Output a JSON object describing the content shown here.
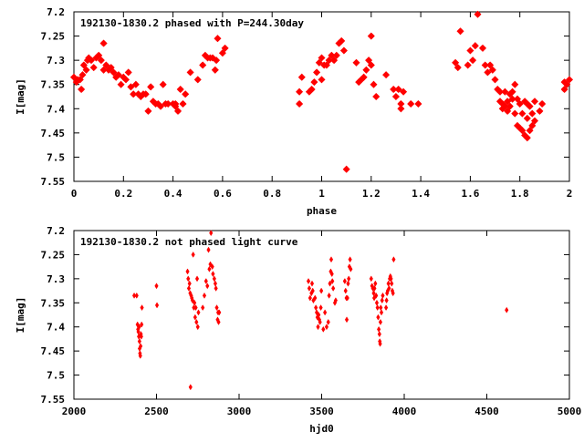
{
  "chart_data": [
    {
      "type": "scatter",
      "title": "192130-1830.2 phased with P=244.30day",
      "xlabel": "phase",
      "ylabel": "I[mag]",
      "xlim": [
        0,
        2
      ],
      "ylim": [
        7.2,
        7.55
      ],
      "y_inverted": true,
      "xticks": [
        0,
        0.2,
        0.4,
        0.6,
        0.8,
        1,
        1.2,
        1.4,
        1.6,
        1.8,
        2
      ],
      "xtick_labels": [
        "0",
        "0.2",
        "0.4",
        "0.6",
        "0.8",
        "1",
        "1.2",
        "1.4",
        "1.6",
        "1.8",
        "2"
      ],
      "yticks": [
        7.2,
        7.25,
        7.3,
        7.35,
        7.4,
        7.45,
        7.5,
        7.55
      ],
      "ytick_labels": [
        "7.2",
        "7.25",
        "7.3",
        "7.35",
        "7.4",
        "7.45",
        "7.5",
        "7.55"
      ],
      "marker": "star",
      "color": "#ff0000",
      "points": [
        [
          0.0,
          7.335
        ],
        [
          0.01,
          7.345
        ],
        [
          0.015,
          7.34
        ],
        [
          0.025,
          7.34
        ],
        [
          0.03,
          7.36
        ],
        [
          0.035,
          7.33
        ],
        [
          0.04,
          7.31
        ],
        [
          0.05,
          7.32
        ],
        [
          0.055,
          7.3
        ],
        [
          0.06,
          7.295
        ],
        [
          0.07,
          7.3
        ],
        [
          0.08,
          7.315
        ],
        [
          0.09,
          7.295
        ],
        [
          0.1,
          7.29
        ],
        [
          0.11,
          7.3
        ],
        [
          0.12,
          7.32
        ],
        [
          0.12,
          7.265
        ],
        [
          0.13,
          7.31
        ],
        [
          0.14,
          7.32
        ],
        [
          0.15,
          7.315
        ],
        [
          0.16,
          7.325
        ],
        [
          0.17,
          7.335
        ],
        [
          0.18,
          7.33
        ],
        [
          0.19,
          7.35
        ],
        [
          0.2,
          7.335
        ],
        [
          0.21,
          7.34
        ],
        [
          0.22,
          7.325
        ],
        [
          0.23,
          7.355
        ],
        [
          0.24,
          7.37
        ],
        [
          0.25,
          7.35
        ],
        [
          0.26,
          7.37
        ],
        [
          0.27,
          7.375
        ],
        [
          0.28,
          7.37
        ],
        [
          0.29,
          7.37
        ],
        [
          0.3,
          7.405
        ],
        [
          0.31,
          7.355
        ],
        [
          0.32,
          7.385
        ],
        [
          0.33,
          7.39
        ],
        [
          0.34,
          7.39
        ],
        [
          0.35,
          7.395
        ],
        [
          0.36,
          7.35
        ],
        [
          0.37,
          7.39
        ],
        [
          0.38,
          7.39
        ],
        [
          0.4,
          7.39
        ],
        [
          0.41,
          7.395
        ],
        [
          0.41,
          7.39
        ],
        [
          0.42,
          7.405
        ],
        [
          0.43,
          7.36
        ],
        [
          0.44,
          7.39
        ],
        [
          0.45,
          7.37
        ],
        [
          0.47,
          7.325
        ],
        [
          0.5,
          7.34
        ],
        [
          0.52,
          7.31
        ],
        [
          0.53,
          7.29
        ],
        [
          0.54,
          7.295
        ],
        [
          0.55,
          7.295
        ],
        [
          0.56,
          7.295
        ],
        [
          0.57,
          7.32
        ],
        [
          0.575,
          7.3
        ],
        [
          0.58,
          7.255
        ],
        [
          0.6,
          7.285
        ],
        [
          0.61,
          7.275
        ],
        [
          0.91,
          7.365
        ],
        [
          0.91,
          7.39
        ],
        [
          0.92,
          7.335
        ],
        [
          0.95,
          7.365
        ],
        [
          0.96,
          7.36
        ],
        [
          0.97,
          7.345
        ],
        [
          0.98,
          7.325
        ],
        [
          0.99,
          7.305
        ],
        [
          1.0,
          7.34
        ],
        [
          1.0,
          7.295
        ],
        [
          1.01,
          7.31
        ],
        [
          1.02,
          7.31
        ],
        [
          1.03,
          7.3
        ],
        [
          1.04,
          7.29
        ],
        [
          1.05,
          7.3
        ],
        [
          1.06,
          7.29
        ],
        [
          1.07,
          7.265
        ],
        [
          1.08,
          7.26
        ],
        [
          1.09,
          7.28
        ],
        [
          1.1,
          7.525
        ],
        [
          1.14,
          7.305
        ],
        [
          1.15,
          7.345
        ],
        [
          1.16,
          7.34
        ],
        [
          1.17,
          7.335
        ],
        [
          1.18,
          7.32
        ],
        [
          1.19,
          7.3
        ],
        [
          1.2,
          7.25
        ],
        [
          1.2,
          7.31
        ],
        [
          1.21,
          7.35
        ],
        [
          1.22,
          7.375
        ],
        [
          1.26,
          7.33
        ],
        [
          1.29,
          7.36
        ],
        [
          1.3,
          7.375
        ],
        [
          1.31,
          7.36
        ],
        [
          1.32,
          7.39
        ],
        [
          1.32,
          7.4
        ],
        [
          1.33,
          7.365
        ],
        [
          1.36,
          7.39
        ],
        [
          1.39,
          7.39
        ],
        [
          1.54,
          7.305
        ],
        [
          1.55,
          7.315
        ],
        [
          1.56,
          7.24
        ],
        [
          1.59,
          7.31
        ],
        [
          1.6,
          7.28
        ],
        [
          1.61,
          7.3
        ],
        [
          1.62,
          7.27
        ],
        [
          1.63,
          7.205
        ],
        [
          1.65,
          7.275
        ],
        [
          1.66,
          7.31
        ],
        [
          1.67,
          7.325
        ],
        [
          1.68,
          7.31
        ],
        [
          1.69,
          7.32
        ],
        [
          1.7,
          7.34
        ],
        [
          1.71,
          7.36
        ],
        [
          1.72,
          7.365
        ],
        [
          1.72,
          7.385
        ],
        [
          1.73,
          7.39
        ],
        [
          1.73,
          7.4
        ],
        [
          1.74,
          7.395
        ],
        [
          1.74,
          7.365
        ],
        [
          1.75,
          7.385
        ],
        [
          1.75,
          7.405
        ],
        [
          1.76,
          7.37
        ],
        [
          1.76,
          7.395
        ],
        [
          1.77,
          7.38
        ],
        [
          1.77,
          7.365
        ],
        [
          1.78,
          7.35
        ],
        [
          1.78,
          7.41
        ],
        [
          1.79,
          7.38
        ],
        [
          1.79,
          7.435
        ],
        [
          1.8,
          7.39
        ],
        [
          1.8,
          7.44
        ],
        [
          1.81,
          7.41
        ],
        [
          1.81,
          7.445
        ],
        [
          1.82,
          7.385
        ],
        [
          1.82,
          7.455
        ],
        [
          1.83,
          7.39
        ],
        [
          1.83,
          7.42
        ],
        [
          1.83,
          7.46
        ],
        [
          1.84,
          7.395
        ],
        [
          1.84,
          7.445
        ],
        [
          1.85,
          7.41
        ],
        [
          1.85,
          7.435
        ],
        [
          1.86,
          7.425
        ],
        [
          1.86,
          7.385
        ],
        [
          1.88,
          7.405
        ],
        [
          1.89,
          7.39
        ],
        [
          1.98,
          7.345
        ],
        [
          1.98,
          7.36
        ],
        [
          1.99,
          7.35
        ],
        [
          2.0,
          7.34
        ]
      ]
    },
    {
      "type": "scatter",
      "title": "192130-1830.2 not phased light curve",
      "xlabel": "hjd0",
      "ylabel": "I[mag]",
      "xlim": [
        2000,
        5000
      ],
      "ylim": [
        7.2,
        7.55
      ],
      "y_inverted": true,
      "xticks": [
        2000,
        2500,
        3000,
        3500,
        4000,
        4500,
        5000
      ],
      "xtick_labels": [
        "2000",
        "2500",
        "3000",
        "3500",
        "4000",
        "4500",
        "5000"
      ],
      "yticks": [
        7.2,
        7.25,
        7.3,
        7.35,
        7.4,
        7.45,
        7.5,
        7.55
      ],
      "ytick_labels": [
        "7.2",
        "7.25",
        "7.3",
        "7.35",
        "7.4",
        "7.45",
        "7.5",
        "7.55"
      ],
      "marker": "diamond",
      "color": "#ff0000",
      "points": [
        [
          2365,
          7.335
        ],
        [
          2380,
          7.335
        ],
        [
          2385,
          7.395
        ],
        [
          2388,
          7.405
        ],
        [
          2390,
          7.41
        ],
        [
          2393,
          7.42
        ],
        [
          2395,
          7.4
        ],
        [
          2397,
          7.43
        ],
        [
          2398,
          7.445
        ],
        [
          2400,
          7.455
        ],
        [
          2402,
          7.46
        ],
        [
          2404,
          7.44
        ],
        [
          2406,
          7.415
        ],
        [
          2408,
          7.42
        ],
        [
          2410,
          7.395
        ],
        [
          2412,
          7.36
        ],
        [
          2500,
          7.315
        ],
        [
          2503,
          7.355
        ],
        [
          2688,
          7.285
        ],
        [
          2692,
          7.3
        ],
        [
          2696,
          7.32
        ],
        [
          2700,
          7.31
        ],
        [
          2704,
          7.33
        ],
        [
          2706,
          7.525
        ],
        [
          2710,
          7.335
        ],
        [
          2714,
          7.34
        ],
        [
          2718,
          7.345
        ],
        [
          2722,
          7.25
        ],
        [
          2726,
          7.36
        ],
        [
          2730,
          7.35
        ],
        [
          2734,
          7.38
        ],
        [
          2738,
          7.36
        ],
        [
          2742,
          7.39
        ],
        [
          2746,
          7.3
        ],
        [
          2750,
          7.4
        ],
        [
          2754,
          7.37
        ],
        [
          2780,
          7.36
        ],
        [
          2790,
          7.335
        ],
        [
          2800,
          7.305
        ],
        [
          2808,
          7.315
        ],
        [
          2815,
          7.24
        ],
        [
          2820,
          7.28
        ],
        [
          2826,
          7.27
        ],
        [
          2830,
          7.205
        ],
        [
          2838,
          7.275
        ],
        [
          2842,
          7.29
        ],
        [
          2850,
          7.3
        ],
        [
          2856,
          7.31
        ],
        [
          2860,
          7.32
        ],
        [
          2865,
          7.36
        ],
        [
          2870,
          7.385
        ],
        [
          2873,
          7.37
        ],
        [
          2876,
          7.39
        ],
        [
          2880,
          7.37
        ],
        [
          3420,
          7.305
        ],
        [
          3425,
          7.32
        ],
        [
          3430,
          7.34
        ],
        [
          3438,
          7.33
        ],
        [
          3442,
          7.31
        ],
        [
          3446,
          7.325
        ],
        [
          3450,
          7.345
        ],
        [
          3460,
          7.34
        ],
        [
          3465,
          7.36
        ],
        [
          3470,
          7.37
        ],
        [
          3474,
          7.38
        ],
        [
          3478,
          7.4
        ],
        [
          3482,
          7.375
        ],
        [
          3486,
          7.385
        ],
        [
          3490,
          7.39
        ],
        [
          3495,
          7.36
        ],
        [
          3498,
          7.325
        ],
        [
          3510,
          7.405
        ],
        [
          3520,
          7.37
        ],
        [
          3530,
          7.4
        ],
        [
          3540,
          7.39
        ],
        [
          3545,
          7.335
        ],
        [
          3550,
          7.31
        ],
        [
          3555,
          7.285
        ],
        [
          3558,
          7.26
        ],
        [
          3562,
          7.29
        ],
        [
          3565,
          7.305
        ],
        [
          3570,
          7.32
        ],
        [
          3580,
          7.35
        ],
        [
          3585,
          7.345
        ],
        [
          3640,
          7.305
        ],
        [
          3645,
          7.325
        ],
        [
          3650,
          7.34
        ],
        [
          3652,
          7.385
        ],
        [
          3656,
          7.34
        ],
        [
          3660,
          7.31
        ],
        [
          3664,
          7.3
        ],
        [
          3668,
          7.275
        ],
        [
          3672,
          7.26
        ],
        [
          3676,
          7.28
        ],
        [
          3800,
          7.3
        ],
        [
          3805,
          7.315
        ],
        [
          3810,
          7.32
        ],
        [
          3815,
          7.33
        ],
        [
          3818,
          7.34
        ],
        [
          3820,
          7.32
        ],
        [
          3825,
          7.31
        ],
        [
          3830,
          7.335
        ],
        [
          3834,
          7.35
        ],
        [
          3838,
          7.36
        ],
        [
          3842,
          7.38
        ],
        [
          3846,
          7.405
        ],
        [
          3850,
          7.415
        ],
        [
          3852,
          7.43
        ],
        [
          3854,
          7.435
        ],
        [
          3856,
          7.39
        ],
        [
          3858,
          7.36
        ],
        [
          3862,
          7.37
        ],
        [
          3866,
          7.345
        ],
        [
          3870,
          7.335
        ],
        [
          3890,
          7.36
        ],
        [
          3893,
          7.345
        ],
        [
          3896,
          7.33
        ],
        [
          3900,
          7.325
        ],
        [
          3904,
          7.31
        ],
        [
          3908,
          7.32
        ],
        [
          3912,
          7.3
        ],
        [
          3916,
          7.295
        ],
        [
          3920,
          7.3
        ],
        [
          3924,
          7.31
        ],
        [
          3928,
          7.325
        ],
        [
          3932,
          7.33
        ],
        [
          3936,
          7.26
        ],
        [
          4620,
          7.365
        ]
      ]
    }
  ]
}
